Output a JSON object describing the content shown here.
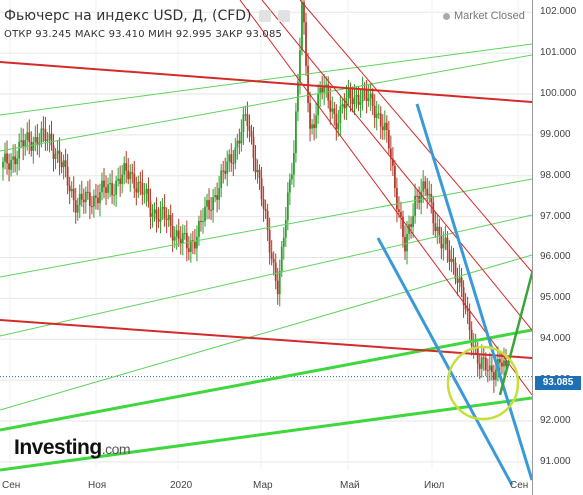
{
  "header": {
    "title": "Фьючерс на индекс USD, Д, (CFD)",
    "ohlc": "ОТКР 93.245  МАКС 93.410  МИН 92.995  ЗАКР 93.085",
    "market_status": "Market Closed"
  },
  "logo": {
    "main": "Investing",
    "suffix": ".com"
  },
  "price_tag": "93.085",
  "colors": {
    "candle_up": "#2e9e2e",
    "candle_down": "#b33a2a",
    "price_tag": "#1f6fb4",
    "red_line": "#d32a2a",
    "green_line": "#5ed35e",
    "blue_line": "#3a9ad9",
    "arrow": "#3aa33a",
    "circle": "#c6df3a"
  },
  "chart_data": {
    "type": "candlestick",
    "title": "Фьючерс на индекс USD, Д, (CFD)",
    "x_ticks": [
      "Сен",
      "Ноя",
      "2020",
      "Мар",
      "Май",
      "Июл",
      "Сен"
    ],
    "y_ticks": [
      "102.000",
      "101.000",
      "100.000",
      "99.000",
      "98.000",
      "97.000",
      "96.000",
      "95.000",
      "94.000",
      "93.000",
      "92.000",
      "91.000"
    ],
    "ylim": [
      90.8,
      102.3
    ],
    "last": 93.085,
    "open": 93.245,
    "high": 93.41,
    "low": 92.995,
    "close": 93.085,
    "price_path": [
      [
        0,
        98.2
      ],
      [
        0.05,
        98.9
      ],
      [
        0.09,
        98.9
      ],
      [
        0.14,
        97.3
      ],
      [
        0.19,
        97.6
      ],
      [
        0.24,
        98.1
      ],
      [
        0.28,
        97.2
      ],
      [
        0.31,
        96.9
      ],
      [
        0.35,
        96.2
      ],
      [
        0.38,
        97.0
      ],
      [
        0.42,
        98.1
      ],
      [
        0.46,
        99.4
      ],
      [
        0.48,
        98.2
      ],
      [
        0.5,
        96.5
      ],
      [
        0.52,
        95.3
      ],
      [
        0.535,
        97.0
      ],
      [
        0.55,
        98.8
      ],
      [
        0.565,
        102.2
      ],
      [
        0.58,
        99.0
      ],
      [
        0.6,
        100.2
      ],
      [
        0.63,
        99.4
      ],
      [
        0.66,
        100.0
      ],
      [
        0.7,
        99.8
      ],
      [
        0.73,
        98.7
      ],
      [
        0.76,
        96.1
      ],
      [
        0.78,
        97.6
      ],
      [
        0.8,
        97.6
      ],
      [
        0.83,
        96.3
      ],
      [
        0.86,
        95.6
      ],
      [
        0.88,
        94.2
      ],
      [
        0.9,
        93.5
      ],
      [
        0.92,
        93.1
      ],
      [
        0.94,
        93.6
      ],
      [
        0.95,
        93.085
      ]
    ]
  }
}
